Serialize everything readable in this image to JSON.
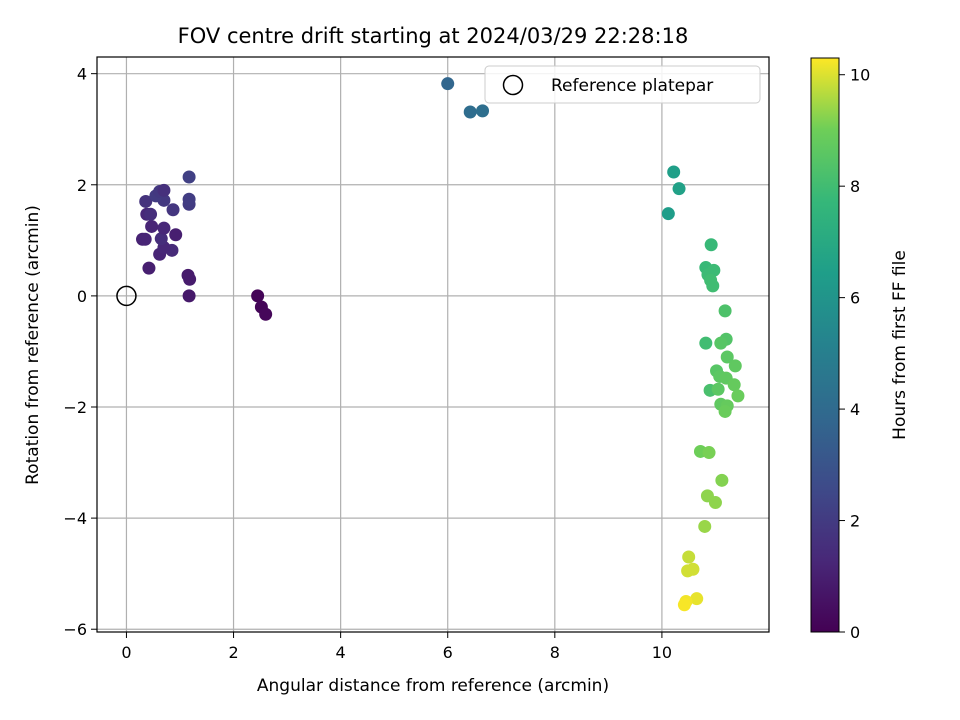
{
  "chart_data": {
    "type": "scatter",
    "title": "FOV centre drift starting at 2024/03/29 22:28:18",
    "xlabel": "Angular distance from reference (arcmin)",
    "ylabel": "Rotation from reference (arcmin)",
    "xlim": [
      -0.55,
      12
    ],
    "ylim": [
      -6.05,
      4.3
    ],
    "xticks": [
      0,
      2,
      4,
      6,
      8,
      10
    ],
    "yticks": [
      -6,
      -4,
      -2,
      0,
      2,
      4
    ],
    "grid": true,
    "legend": {
      "placement": "top-right",
      "entries": [
        "Reference platepar"
      ]
    },
    "reference_point": {
      "x": 0,
      "y": 0
    },
    "colorbar": {
      "label": "Hours from first FF file",
      "range": [
        0,
        10.3
      ],
      "ticks": [
        0,
        2,
        4,
        6,
        8,
        10
      ],
      "colormap": "viridis"
    },
    "points": [
      {
        "x": 2.45,
        "y": 0.0,
        "c": 0.1
      },
      {
        "x": 2.52,
        "y": -0.2,
        "c": 0.15
      },
      {
        "x": 2.6,
        "y": -0.33,
        "c": 0.2
      },
      {
        "x": 1.17,
        "y": 0.0,
        "c": 0.8
      },
      {
        "x": 1.18,
        "y": 0.3,
        "c": 0.9
      },
      {
        "x": 1.15,
        "y": 0.37,
        "c": 0.85
      },
      {
        "x": 0.42,
        "y": 0.5,
        "c": 1.0
      },
      {
        "x": 0.62,
        "y": 0.75,
        "c": 1.2
      },
      {
        "x": 0.85,
        "y": 0.82,
        "c": 1.4
      },
      {
        "x": 0.7,
        "y": 0.87,
        "c": 1.3
      },
      {
        "x": 0.3,
        "y": 1.02,
        "c": 1.1
      },
      {
        "x": 0.35,
        "y": 1.02,
        "c": 1.2
      },
      {
        "x": 0.65,
        "y": 1.03,
        "c": 1.5
      },
      {
        "x": 0.92,
        "y": 1.1,
        "c": 1.0
      },
      {
        "x": 0.7,
        "y": 1.22,
        "c": 1.3
      },
      {
        "x": 0.47,
        "y": 1.25,
        "c": 1.2
      },
      {
        "x": 0.38,
        "y": 1.47,
        "c": 1.3
      },
      {
        "x": 0.45,
        "y": 1.47,
        "c": 1.5
      },
      {
        "x": 0.87,
        "y": 1.55,
        "c": 1.8
      },
      {
        "x": 1.17,
        "y": 1.65,
        "c": 2.0
      },
      {
        "x": 0.36,
        "y": 1.7,
        "c": 1.7
      },
      {
        "x": 0.7,
        "y": 1.72,
        "c": 1.9
      },
      {
        "x": 1.17,
        "y": 1.74,
        "c": 2.1
      },
      {
        "x": 0.55,
        "y": 1.8,
        "c": 2.0
      },
      {
        "x": 0.62,
        "y": 1.88,
        "c": 1.9
      },
      {
        "x": 0.7,
        "y": 1.9,
        "c": 1.6
      },
      {
        "x": 1.17,
        "y": 2.14,
        "c": 2.2
      },
      {
        "x": 6.0,
        "y": 3.82,
        "c": 3.8
      },
      {
        "x": 6.42,
        "y": 3.31,
        "c": 4.1
      },
      {
        "x": 6.65,
        "y": 3.33,
        "c": 4.2
      },
      {
        "x": 10.12,
        "y": 1.48,
        "c": 6.4
      },
      {
        "x": 10.22,
        "y": 2.23,
        "c": 6.5
      },
      {
        "x": 10.32,
        "y": 1.93,
        "c": 6.6
      },
      {
        "x": 10.92,
        "y": 0.92,
        "c": 7.8
      },
      {
        "x": 10.82,
        "y": 0.51,
        "c": 7.8
      },
      {
        "x": 10.97,
        "y": 0.46,
        "c": 7.9
      },
      {
        "x": 10.86,
        "y": 0.38,
        "c": 7.9
      },
      {
        "x": 10.91,
        "y": 0.28,
        "c": 8.0
      },
      {
        "x": 10.95,
        "y": 0.18,
        "c": 8.0
      },
      {
        "x": 11.18,
        "y": -0.27,
        "c": 8.3
      },
      {
        "x": 10.82,
        "y": -0.85,
        "c": 8.0
      },
      {
        "x": 11.2,
        "y": -0.78,
        "c": 8.4
      },
      {
        "x": 11.1,
        "y": -0.85,
        "c": 8.5
      },
      {
        "x": 11.22,
        "y": -1.1,
        "c": 8.6
      },
      {
        "x": 11.37,
        "y": -1.26,
        "c": 8.7
      },
      {
        "x": 11.02,
        "y": -1.35,
        "c": 8.5
      },
      {
        "x": 11.08,
        "y": -1.45,
        "c": 8.6
      },
      {
        "x": 11.2,
        "y": -1.48,
        "c": 8.7
      },
      {
        "x": 11.35,
        "y": -1.6,
        "c": 8.8
      },
      {
        "x": 10.9,
        "y": -1.7,
        "c": 8.2
      },
      {
        "x": 11.05,
        "y": -1.68,
        "c": 8.6
      },
      {
        "x": 11.42,
        "y": -1.8,
        "c": 8.9
      },
      {
        "x": 11.1,
        "y": -1.95,
        "c": 8.7
      },
      {
        "x": 11.22,
        "y": -1.98,
        "c": 8.8
      },
      {
        "x": 11.18,
        "y": -2.08,
        "c": 8.9
      },
      {
        "x": 10.72,
        "y": -2.8,
        "c": 9.0
      },
      {
        "x": 10.88,
        "y": -2.82,
        "c": 9.1
      },
      {
        "x": 11.12,
        "y": -3.32,
        "c": 9.2
      },
      {
        "x": 10.85,
        "y": -3.6,
        "c": 9.3
      },
      {
        "x": 11.0,
        "y": -3.72,
        "c": 9.3
      },
      {
        "x": 10.8,
        "y": -4.15,
        "c": 9.4
      },
      {
        "x": 10.5,
        "y": -4.7,
        "c": 9.8
      },
      {
        "x": 10.48,
        "y": -4.95,
        "c": 9.9
      },
      {
        "x": 10.58,
        "y": -4.92,
        "c": 9.9
      },
      {
        "x": 10.65,
        "y": -5.45,
        "c": 10.1
      },
      {
        "x": 10.45,
        "y": -5.5,
        "c": 10.2
      },
      {
        "x": 10.42,
        "y": -5.56,
        "c": 10.25
      }
    ]
  }
}
